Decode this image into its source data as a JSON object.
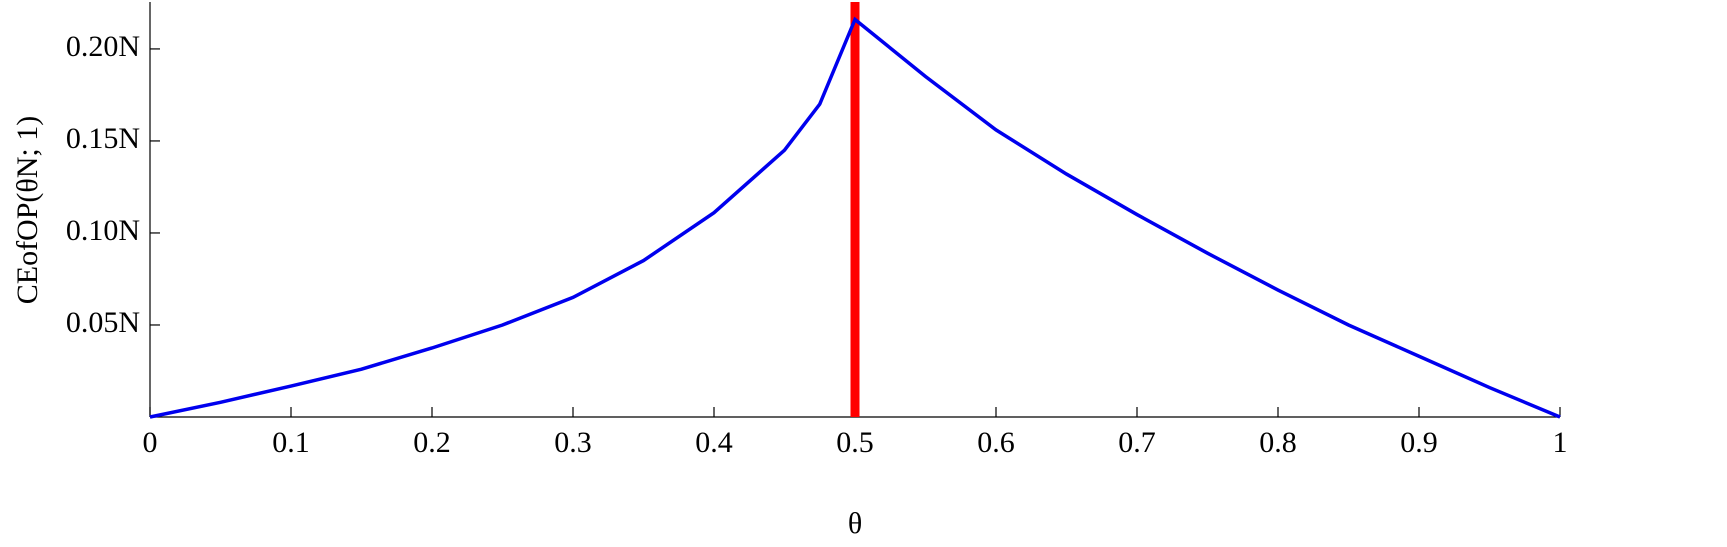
{
  "chart_data": {
    "type": "line",
    "x_label": "θ",
    "y_label": "CEofOP(θN; 1)",
    "x": [
      0,
      0.05,
      0.1,
      0.15,
      0.2,
      0.25,
      0.3,
      0.35,
      0.4,
      0.45,
      0.475,
      0.5,
      0.55,
      0.6,
      0.65,
      0.7,
      0.75,
      0.8,
      0.85,
      0.9,
      0.95,
      1
    ],
    "series": [
      {
        "name": "CEofOP",
        "color": "#0000ee",
        "values": [
          0,
          0.008,
          0.0168,
          0.026,
          0.0375,
          0.05,
          0.065,
          0.085,
          0.111,
          0.145,
          0.17,
          0.216,
          0.185,
          0.156,
          0.132,
          0.11,
          0.089,
          0.069,
          0.05,
          0.033,
          0.016,
          0
        ]
      }
    ],
    "vline": {
      "x": 0.5,
      "color": "#ff0000"
    },
    "xlim": [
      0,
      1
    ],
    "ylim": [
      0,
      0.2255
    ],
    "xticks": [
      0,
      0.1,
      0.2,
      0.3,
      0.4,
      0.5,
      0.6,
      0.7,
      0.8,
      0.9,
      1
    ],
    "yticks": [
      {
        "value": 0.05,
        "label": "0.05N"
      },
      {
        "value": 0.1,
        "label": "0.10N"
      },
      {
        "value": 0.15,
        "label": "0.15N"
      },
      {
        "value": 0.2,
        "label": "0.20N"
      }
    ]
  }
}
